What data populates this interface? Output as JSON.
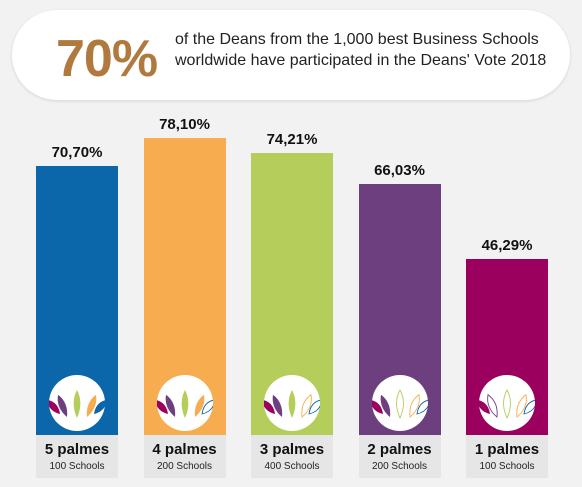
{
  "header": {
    "highlight": "70%",
    "line1": "of the Deans from the 1,000 best Business Schools",
    "line2": "worldwide have participated in the Deans' Vote 2018",
    "highlight_color": "#b07a3e"
  },
  "chart_data": {
    "type": "bar",
    "ylim": [
      0,
      100
    ],
    "bars": [
      {
        "value": 70.7,
        "value_label": "70,70%",
        "label": "5 palmes",
        "sublabel": "100 Schools",
        "color": "#0b66aa",
        "palms_filled": 5
      },
      {
        "value": 78.1,
        "value_label": "78,10%",
        "label": "4 palmes",
        "sublabel": "200 Schools",
        "color": "#f7ac50",
        "palms_filled": 4
      },
      {
        "value": 74.21,
        "value_label": "74,21%",
        "label": "3 palmes",
        "sublabel": "400 Schools",
        "color": "#b5cd5a",
        "palms_filled": 3
      },
      {
        "value": 66.03,
        "value_label": "66,03%",
        "label": "2 palmes",
        "sublabel": "200 Schools",
        "color": "#6e3f7f",
        "palms_filled": 2
      },
      {
        "value": 46.29,
        "value_label": "46,29%",
        "label": "1 palmes",
        "sublabel": "100 Schools",
        "color": "#9b005e",
        "palms_filled": 1
      }
    ]
  }
}
